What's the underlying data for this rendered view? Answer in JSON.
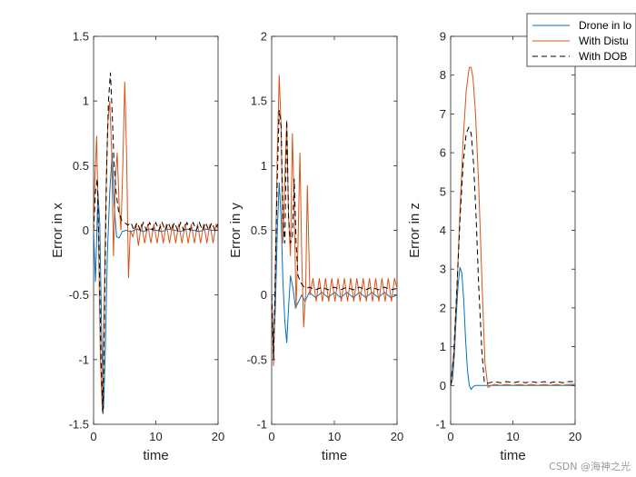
{
  "watermark": "CSDN @海神之光",
  "colors": {
    "drone": "#0072BD",
    "disturbance": "#D95319",
    "dob": "#000000",
    "axis": "#262626"
  },
  "legend": {
    "placement": "top-right",
    "entries": [
      {
        "label": "Drone in lo",
        "series": "drone",
        "style": "solid"
      },
      {
        "label": "With Distu",
        "series": "disturbance",
        "style": "solid"
      },
      {
        "label": "With DOB",
        "series": "dob",
        "style": "dashed"
      }
    ]
  },
  "chart_data": [
    {
      "type": "line",
      "xlabel": "time",
      "ylabel": "Error in x",
      "xlim": [
        0,
        20
      ],
      "ylim": [
        -1.5,
        1.5
      ],
      "xticks": [
        0,
        10,
        20
      ],
      "xtick_labels": [
        "0",
        "10",
        "20"
      ],
      "yticks": [
        -1.5,
        -1,
        -0.5,
        0,
        0.5,
        1,
        1.5
      ],
      "ytick_labels": [
        "-1.5",
        "-1",
        "-0.5",
        "0",
        "0.5",
        "1",
        "1.5"
      ],
      "series": [
        {
          "name": "Drone in lo",
          "key": "drone",
          "x": [
            0,
            0.3,
            0.7,
            1.0,
            1.3,
            1.6,
            1.9,
            2.2,
            2.6,
            3.0,
            3.3,
            3.7,
            4.1,
            4.6,
            5.2,
            6,
            7,
            8,
            9,
            10,
            11,
            12,
            13,
            14,
            15,
            16,
            17,
            18,
            19,
            20
          ],
          "y": [
            0,
            -0.4,
            0.3,
            0.05,
            -0.8,
            -1.38,
            -0.9,
            -0.2,
            0.3,
            0.6,
            0.2,
            -0.05,
            -0.06,
            -0.01,
            0.0,
            -0.01,
            0.01,
            -0.01,
            0.01,
            0.0,
            -0.01,
            0.01,
            0.0,
            -0.01,
            0.01,
            0.0,
            -0.01,
            0.01,
            0.0,
            0.0
          ]
        },
        {
          "name": "With Distu",
          "key": "disturbance",
          "x": [
            0,
            0.2,
            0.5,
            0.8,
            1.1,
            1.4,
            1.7,
            2.0,
            2.3,
            2.6,
            2.9,
            3.2,
            3.5,
            3.8,
            4.1,
            4.4,
            4.7,
            5.0,
            5.3,
            5.6,
            5.9,
            6.3,
            6.8,
            7.2,
            7.7,
            8.2,
            8.7,
            9.2,
            9.7,
            10.2,
            10.7,
            11.2,
            11.7,
            12.2,
            12.7,
            13.2,
            13.7,
            14.2,
            14.7,
            15.2,
            15.7,
            16.2,
            16.7,
            17.2,
            17.7,
            18.2,
            18.7,
            19.2,
            19.7,
            20
          ],
          "y": [
            0,
            0.4,
            0.73,
            -0.1,
            -1.0,
            -1.4,
            -0.6,
            0.3,
            0.85,
            1.0,
            0.6,
            -0.2,
            0.4,
            0.6,
            0.2,
            0.0,
            0.5,
            1.15,
            0.6,
            -0.37,
            0.0,
            -0.05,
            0.05,
            -0.12,
            0.05,
            -0.1,
            0.05,
            -0.1,
            0.05,
            -0.1,
            0.05,
            -0.1,
            0.05,
            -0.1,
            0.05,
            -0.1,
            0.05,
            -0.1,
            0.05,
            -0.1,
            0.05,
            -0.1,
            0.05,
            -0.1,
            0.05,
            -0.1,
            0.05,
            -0.1,
            0.05,
            0.0
          ]
        },
        {
          "name": "With DOB",
          "key": "dob",
          "x": [
            0,
            0.3,
            0.6,
            0.9,
            1.2,
            1.5,
            1.8,
            2.1,
            2.4,
            2.7,
            3.0,
            3.3,
            3.6,
            4.0,
            4.5,
            5.0,
            5.5,
            6.0,
            6.5,
            7.0,
            7.5,
            8.0,
            8.5,
            9.0,
            9.5,
            10.0,
            10.5,
            11.0,
            11.5,
            12.0,
            12.5,
            13.0,
            13.5,
            14.0,
            14.5,
            15.0,
            15.5,
            16.0,
            16.5,
            17.0,
            17.5,
            18.0,
            18.5,
            19.0,
            19.5,
            20
          ],
          "y": [
            0,
            0.3,
            0.4,
            -0.2,
            -1.0,
            -1.42,
            -0.5,
            0.5,
            1.0,
            1.22,
            0.9,
            0.5,
            0.3,
            0.15,
            0.08,
            0.06,
            0.04,
            0.06,
            0.0,
            0.06,
            0.0,
            0.06,
            0.0,
            0.06,
            0.0,
            0.06,
            0.0,
            0.06,
            0.0,
            0.06,
            0.0,
            0.06,
            0.0,
            0.06,
            0.0,
            0.06,
            0.0,
            0.06,
            0.0,
            0.06,
            0.0,
            0.06,
            0.0,
            0.06,
            0.0,
            0.05
          ]
        }
      ]
    },
    {
      "type": "line",
      "xlabel": "time",
      "ylabel": "Error in y",
      "xlim": [
        0,
        20
      ],
      "ylim": [
        -1,
        2
      ],
      "xticks": [
        0,
        10,
        20
      ],
      "xtick_labels": [
        "0",
        "10",
        "20"
      ],
      "yticks": [
        -1,
        -0.5,
        0,
        0.5,
        1,
        1.5,
        2
      ],
      "ytick_labels": [
        "-1",
        "-0.5",
        "0",
        "0.5",
        "1",
        "1.5",
        "2"
      ],
      "series": [
        {
          "name": "Drone in lo",
          "key": "drone",
          "x": [
            0,
            0.3,
            0.6,
            0.9,
            1.2,
            1.5,
            1.8,
            2.1,
            2.4,
            2.7,
            3.0,
            3.4,
            3.8,
            4.3,
            4.8,
            5.3,
            6,
            7,
            8,
            9,
            10,
            11,
            12,
            13,
            14,
            15,
            16,
            17,
            18,
            19,
            20
          ],
          "y": [
            0,
            -0.4,
            -0.1,
            0.5,
            0.87,
            0.6,
            0.1,
            -0.2,
            -0.37,
            -0.1,
            0.15,
            0.05,
            -0.1,
            -0.05,
            0.0,
            -0.05,
            0.02,
            -0.02,
            0.02,
            -0.02,
            0.02,
            -0.02,
            0.02,
            -0.02,
            0.02,
            -0.02,
            0.02,
            -0.02,
            0.02,
            -0.02,
            0.0
          ]
        },
        {
          "name": "With Distu",
          "key": "disturbance",
          "x": [
            0,
            0.3,
            0.6,
            0.9,
            1.2,
            1.5,
            1.8,
            2.1,
            2.4,
            2.7,
            3.0,
            3.3,
            3.6,
            3.9,
            4.2,
            4.5,
            4.8,
            5.1,
            5.4,
            5.7,
            6.1,
            6.6,
            7.1,
            7.6,
            8.1,
            8.6,
            9.1,
            9.6,
            10.1,
            10.6,
            11.1,
            11.6,
            12.1,
            12.6,
            13.1,
            13.6,
            14.1,
            14.6,
            15.1,
            15.6,
            16.1,
            16.6,
            17.1,
            17.6,
            18.1,
            18.6,
            19.1,
            19.6,
            20
          ],
          "y": [
            0,
            -0.55,
            0.2,
            1.1,
            1.7,
            1.3,
            0.4,
            0.9,
            1.35,
            0.6,
            0.3,
            1.25,
            0.7,
            -0.1,
            0.4,
            1.1,
            0.3,
            -0.25,
            0.0,
            0.85,
            0.0,
            0.13,
            -0.05,
            0.13,
            -0.05,
            0.13,
            -0.05,
            0.13,
            -0.05,
            0.13,
            -0.05,
            0.13,
            -0.05,
            0.13,
            -0.05,
            0.13,
            -0.05,
            0.13,
            -0.05,
            0.13,
            -0.05,
            0.13,
            -0.05,
            0.13,
            -0.05,
            0.13,
            -0.05,
            0.13,
            0.05
          ]
        },
        {
          "name": "With DOB",
          "key": "dob",
          "x": [
            0,
            0.3,
            0.6,
            0.9,
            1.2,
            1.5,
            1.8,
            2.1,
            2.4,
            2.7,
            3.0,
            3.3,
            3.6,
            3.9,
            4.2,
            4.6,
            5.0,
            5.5,
            6,
            7,
            8,
            9,
            10,
            11,
            12,
            13,
            14,
            15,
            16,
            17,
            18,
            19,
            20
          ],
          "y": [
            0,
            -0.5,
            0.2,
            0.9,
            1.43,
            1.3,
            0.6,
            0.4,
            1.35,
            0.6,
            0.4,
            0.45,
            0.9,
            0.4,
            0.15,
            0.1,
            0.07,
            0.05,
            0.06,
            0.04,
            0.06,
            0.04,
            0.06,
            0.04,
            0.06,
            0.04,
            0.06,
            0.04,
            0.06,
            0.04,
            0.06,
            0.04,
            0.05
          ]
        }
      ]
    },
    {
      "type": "line",
      "xlabel": "time",
      "ylabel": "Error in z",
      "xlim": [
        0,
        20
      ],
      "ylim": [
        -1,
        9
      ],
      "xticks": [
        0,
        10,
        20
      ],
      "xtick_labels": [
        "0",
        "10",
        "20"
      ],
      "yticks": [
        -1,
        0,
        1,
        2,
        3,
        4,
        5,
        6,
        7,
        8,
        9
      ],
      "ytick_labels": [
        "-1",
        "0",
        "1",
        "2",
        "3",
        "4",
        "5",
        "6",
        "7",
        "8",
        "9"
      ],
      "series": [
        {
          "name": "Drone in lo",
          "key": "drone",
          "x": [
            0,
            0.3,
            0.6,
            0.9,
            1.2,
            1.5,
            1.8,
            2.1,
            2.4,
            2.7,
            3.0,
            3.3,
            3.6,
            4.0,
            4.5,
            5,
            6,
            8,
            10,
            12,
            14,
            16,
            18,
            20
          ],
          "y": [
            0,
            0.15,
            0.8,
            1.8,
            2.6,
            3.05,
            2.9,
            2.2,
            1.2,
            0.4,
            0.0,
            -0.1,
            -0.03,
            0.0,
            0.0,
            0.0,
            0.0,
            0.0,
            0.0,
            0.0,
            0.0,
            0.0,
            0.0,
            0.0
          ]
        },
        {
          "name": "With Distu",
          "key": "disturbance",
          "x": [
            0,
            0.5,
            1.0,
            1.5,
            2.0,
            2.5,
            3.0,
            3.3,
            3.6,
            4.0,
            4.5,
            5.0,
            5.5,
            6.0,
            6.5,
            7,
            8,
            9,
            10,
            11,
            12,
            13,
            14,
            15,
            16,
            17,
            18,
            19,
            20
          ],
          "y": [
            0,
            0.8,
            2.5,
            4.5,
            6.3,
            7.6,
            8.2,
            8.2,
            7.9,
            7.0,
            5.2,
            2.8,
            0.6,
            -0.05,
            0.0,
            0.03,
            0.0,
            0.03,
            0.0,
            0.03,
            0.0,
            0.03,
            0.0,
            0.03,
            0.0,
            0.03,
            0.0,
            0.03,
            0.03
          ]
        },
        {
          "name": "With DOB",
          "key": "dob",
          "x": [
            0,
            0.5,
            1.0,
            1.5,
            2.0,
            2.5,
            2.9,
            3.3,
            3.7,
            4.1,
            4.5,
            5.0,
            5.4,
            5.8,
            6.2,
            7,
            8,
            9,
            10,
            11,
            12,
            13,
            14,
            15,
            16,
            17,
            18,
            19,
            20
          ],
          "y": [
            0,
            0.8,
            2.5,
            4.3,
            5.7,
            6.5,
            6.65,
            6.5,
            5.7,
            4.3,
            2.6,
            0.9,
            0.1,
            0.05,
            0.07,
            0.1,
            0.07,
            0.1,
            0.07,
            0.1,
            0.07,
            0.1,
            0.07,
            0.1,
            0.07,
            0.1,
            0.07,
            0.1,
            0.1
          ]
        }
      ]
    }
  ]
}
